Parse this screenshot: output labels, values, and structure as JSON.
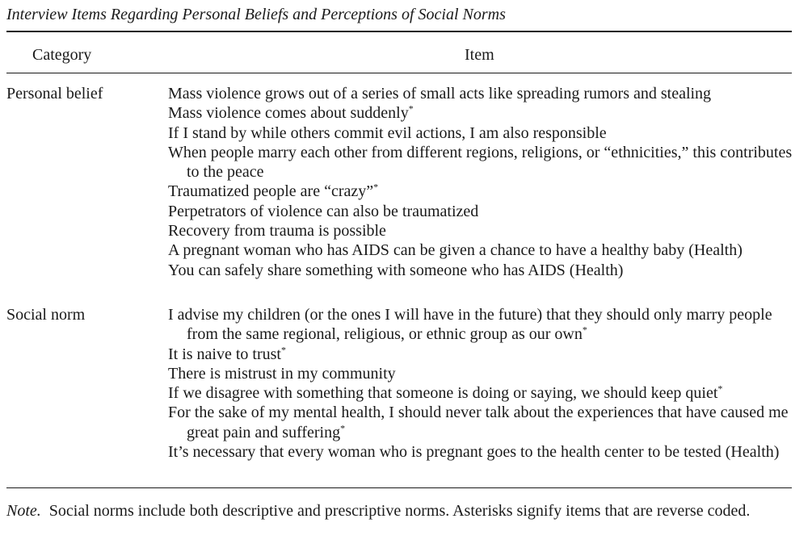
{
  "caption": "Interview Items Regarding Personal Beliefs and Perceptions of Social Norms",
  "header": {
    "category": "Category",
    "item": "Item"
  },
  "rows": [
    {
      "category": "Personal belief",
      "items": [
        {
          "text": "Mass violence grows out of a series of small acts like spreading rumors and stealing",
          "mark": ""
        },
        {
          "text": "Mass violence comes about suddenly",
          "mark": "*"
        },
        {
          "text": "If I stand by while others commit evil actions, I am also responsible",
          "mark": ""
        },
        {
          "text": "When people marry each other from different regions, religions, or “ethnicities,” this contributes to the peace",
          "mark": ""
        },
        {
          "text": "Traumatized people are “crazy”",
          "mark": "*"
        },
        {
          "text": "Perpetrators of violence can also be traumatized",
          "mark": ""
        },
        {
          "text": "Recovery from trauma is possible",
          "mark": ""
        },
        {
          "text": "A pregnant woman who has AIDS can be given a chance to have a healthy baby (Health)",
          "mark": ""
        },
        {
          "text": "You can safely share something with someone who has AIDS (Health)",
          "mark": ""
        }
      ]
    },
    {
      "category": "Social norm",
      "items": [
        {
          "text": "I advise my children (or the ones I will have in the future) that they should only marry people from the same regional, religious, or ethnic group as our own",
          "mark": "*"
        },
        {
          "text": "It is naive to trust",
          "mark": "*"
        },
        {
          "text": "There is mistrust in my community",
          "mark": ""
        },
        {
          "text": "If we disagree with something that someone is doing or saying, we should keep quiet",
          "mark": "*"
        },
        {
          "text": "For the sake of my mental health, I should never talk about the experiences that have caused me great pain and suffering",
          "mark": "*"
        },
        {
          "text": "It’s necessary that every woman who is pregnant goes to the health center to be tested (Health)",
          "mark": ""
        }
      ]
    }
  ],
  "note": {
    "label": "Note.",
    "text": "Social norms include both descriptive and prescriptive norms. Asterisks signify items that are reverse coded."
  }
}
